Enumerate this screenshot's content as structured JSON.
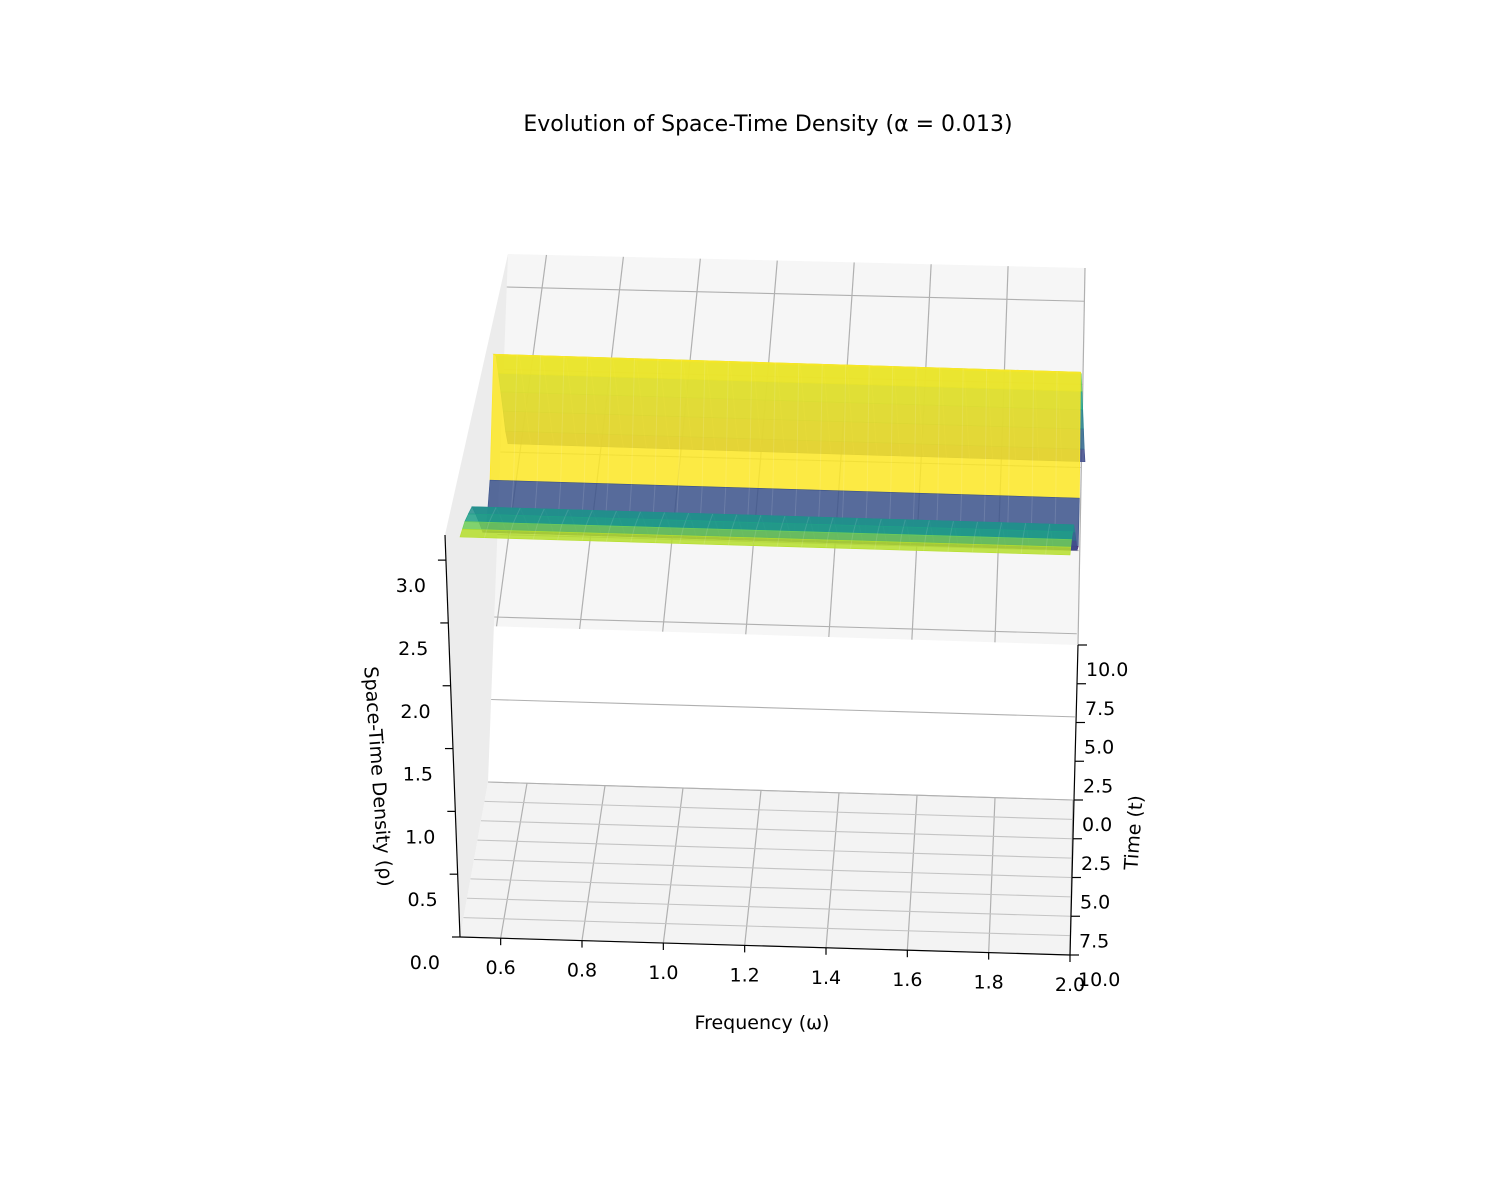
{
  "chart_data": {
    "type": "surface3d",
    "title": "Evolution of Space-Time Density (α = 0.013)",
    "xlabel": "Frequency (ω)",
    "ylabel": "Time (t)",
    "zlabel": "Space-Time Density (ρ)",
    "x_ticks": [
      "0.6",
      "0.8",
      "1.0",
      "1.2",
      "1.4",
      "1.6",
      "1.8",
      "2.0"
    ],
    "y_ticks": [
      "10.0",
      "7.5",
      "5.0",
      "2.5",
      "0.0",
      "2.5",
      "5.0",
      "7.5",
      "10.0"
    ],
    "z_ticks": [
      "0.0",
      "0.5",
      "1.0",
      "1.5",
      "2.0",
      "2.5",
      "3.0"
    ],
    "xlim": [
      0.5,
      2.0
    ],
    "ylim": [
      -10.0,
      10.0
    ],
    "zlim": [
      0.0,
      3.2
    ],
    "colormap": "viridis",
    "grid": true,
    "pane_color": "#f2f2f2",
    "surface_bands": [
      {
        "t": -10.0,
        "rho": 2.05,
        "color": "#3e4a89"
      },
      {
        "t": -9.0,
        "rho": 2.2,
        "color": "#31688e"
      },
      {
        "t": -8.0,
        "rho": 2.4,
        "color": "#26828e"
      },
      {
        "t": -7.0,
        "rho": 2.6,
        "color": "#1fa188"
      },
      {
        "t": -6.0,
        "rho": 2.8,
        "color": "#6ece58"
      },
      {
        "t": -5.0,
        "rho": 3.0,
        "color": "#b5de2b"
      },
      {
        "t": -4.0,
        "rho": 3.1,
        "color": "#fde725"
      },
      {
        "t": -2.5,
        "rho": 2.4,
        "color": "#3b528b"
      },
      {
        "t": -1.0,
        "rho": 2.2,
        "color": "#482878"
      },
      {
        "t": 0.5,
        "rho": 2.3,
        "color": "#3e4a89"
      },
      {
        "t": 2.0,
        "rho": 2.5,
        "color": "#31688e"
      },
      {
        "t": 3.5,
        "rho": 2.7,
        "color": "#26828e"
      },
      {
        "t": 5.0,
        "rho": 2.9,
        "color": "#21918c"
      },
      {
        "t": 6.5,
        "rho": 3.0,
        "color": "#1fa188"
      },
      {
        "t": 8.0,
        "rho": 3.1,
        "color": "#6ece58"
      },
      {
        "t": 9.0,
        "rho": 3.15,
        "color": "#b5de2b"
      },
      {
        "t": 10.0,
        "rho": 3.2,
        "color": "#fde725"
      }
    ]
  }
}
